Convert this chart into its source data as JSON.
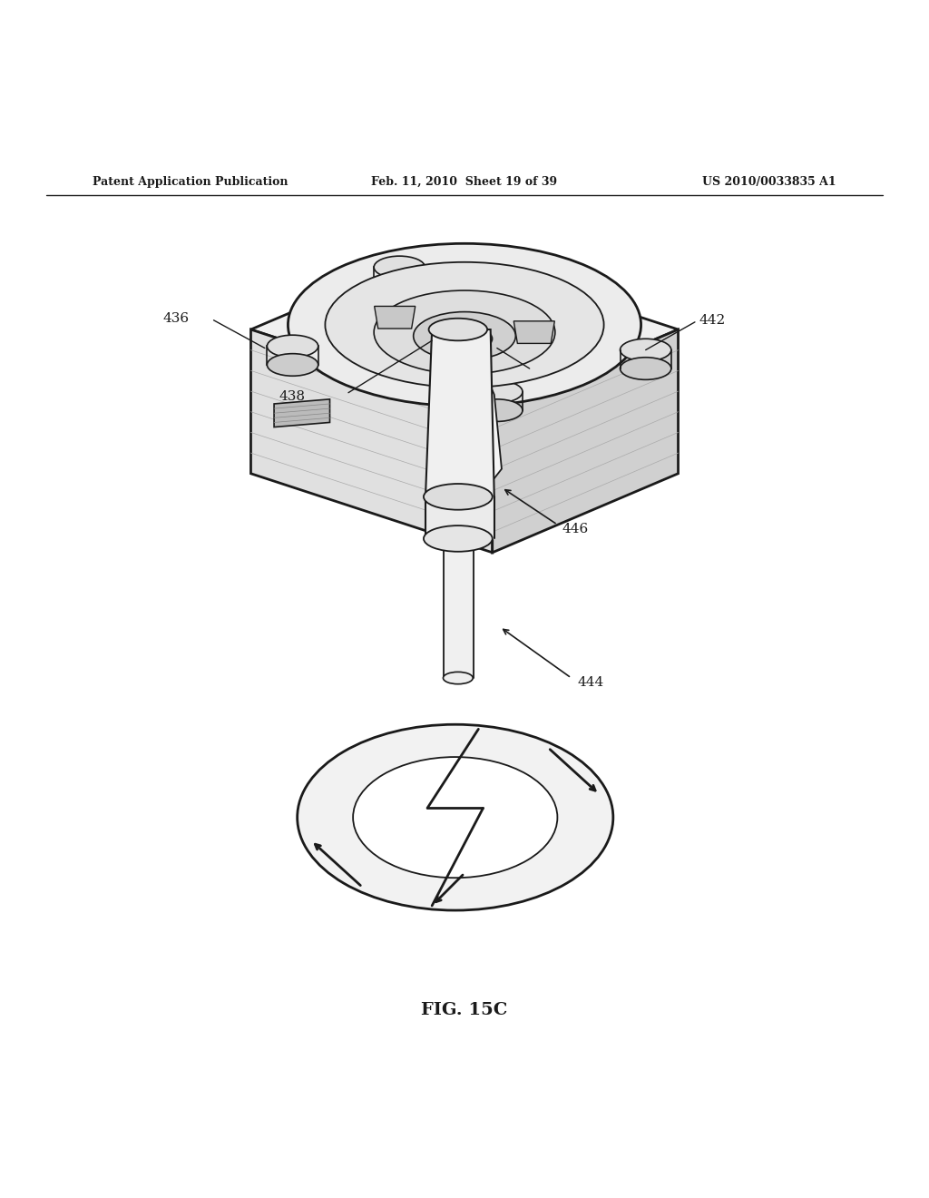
{
  "title": "FIG. 15C",
  "header_left": "Patent Application Publication",
  "header_center": "Feb. 11, 2010  Sheet 19 of 39",
  "header_right": "US 2010/0033835 A1",
  "bg_color": "#ffffff",
  "line_color": "#1a1a1a"
}
